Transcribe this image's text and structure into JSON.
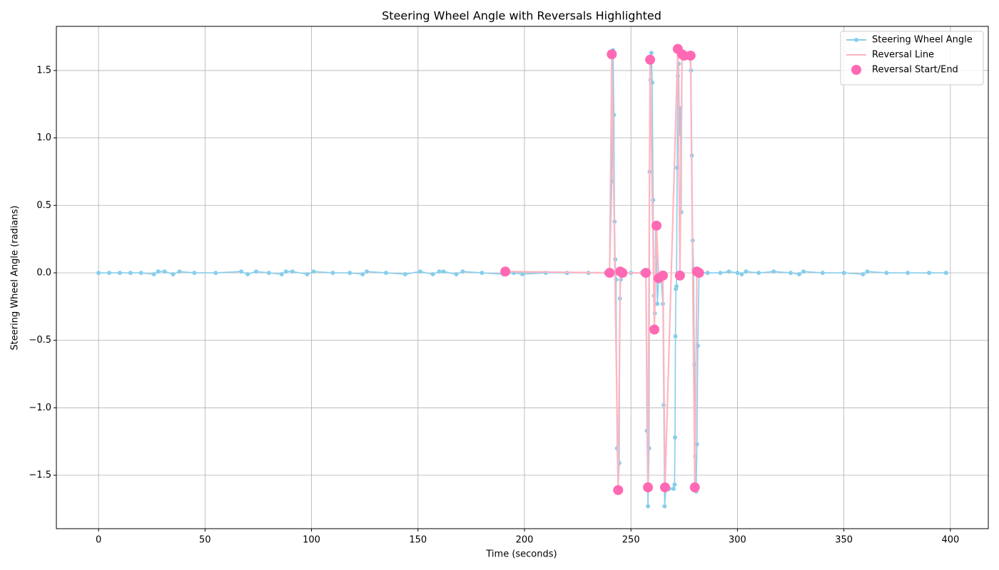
{
  "chart_data": {
    "type": "line",
    "title": "Steering Wheel Angle with Reversals Highlighted",
    "x_label": "Time (seconds)",
    "y_label": "Steering Wheel Angle (radians)",
    "xlim": [
      -19.8,
      417.8
    ],
    "ylim": [
      -1.896,
      1.827
    ],
    "xticks": [
      0,
      50,
      100,
      150,
      200,
      250,
      300,
      350,
      400
    ],
    "yticks": [
      {
        "value": -1.5,
        "label": "−1.5"
      },
      {
        "value": -1.0,
        "label": "−1.0"
      },
      {
        "value": -0.5,
        "label": "−0.5"
      },
      {
        "value": 0.0,
        "label": "0.0"
      },
      {
        "value": 0.5,
        "label": "0.5"
      },
      {
        "value": 1.0,
        "label": "1.0"
      },
      {
        "value": 1.5,
        "label": "1.5"
      }
    ],
    "grid": true,
    "legend": "upper right",
    "series": [
      {
        "name": "Steering Wheel Angle",
        "color": "#87ceeb",
        "mode": "line+markers",
        "x": [
          0,
          5,
          10,
          15,
          20,
          26,
          28,
          31,
          35,
          38,
          45,
          55,
          67,
          70,
          74,
          80,
          86,
          88,
          91,
          98,
          101,
          110,
          118,
          124,
          126,
          135,
          144,
          151,
          157,
          160,
          162,
          168,
          171,
          180,
          190,
          195,
          199,
          210,
          220,
          230,
          238,
          240,
          241,
          241.3,
          241.6,
          242,
          242.3,
          242.6,
          243,
          243.5,
          244,
          244.5,
          244.8,
          245.2,
          246,
          250,
          255,
          257,
          257.5,
          258,
          258.5,
          258.8,
          259.2,
          259.6,
          260,
          260.4,
          260.8,
          261.2,
          261.6,
          262,
          262.4,
          263,
          264,
          265,
          265.4,
          265.8,
          266.4,
          268,
          270,
          270.5,
          270.7,
          270.9,
          271.1,
          271.4,
          271.7,
          272,
          272.4,
          272.8,
          273.2,
          273.6,
          274,
          276,
          277.5,
          278.2,
          278.6,
          279,
          279.4,
          279.8,
          280.2,
          280.6,
          281,
          281.4,
          282,
          286,
          292,
          296,
          300,
          302,
          304,
          310,
          317,
          325,
          329,
          331,
          340,
          350,
          359,
          361,
          370,
          380,
          390,
          398
        ],
        "values": [
          0,
          0,
          0,
          0,
          0,
          -0.01,
          0.01,
          0.01,
          -0.01,
          0.01,
          0,
          0,
          0.01,
          -0.01,
          0.01,
          0,
          -0.01,
          0.01,
          0.01,
          -0.01,
          0.01,
          0,
          0,
          -0.01,
          0.01,
          0,
          -0.01,
          0.01,
          -0.01,
          0.01,
          0.01,
          -0.01,
          0.01,
          0,
          -0.01,
          0,
          -0.01,
          0,
          0,
          0,
          0,
          0,
          0.68,
          1.22,
          1.65,
          1.17,
          0.38,
          0.1,
          -0.05,
          -1.3,
          -1.6,
          -1.41,
          -0.19,
          -0.05,
          0,
          0,
          0,
          0,
          -1.17,
          -1.73,
          -1.3,
          0.75,
          1.43,
          1.63,
          1.41,
          0.54,
          -0.17,
          -0.3,
          0.35,
          0.12,
          -0.23,
          -0.05,
          -0.02,
          -0.23,
          -0.98,
          -1.73,
          -1.6,
          -1.6,
          -1.6,
          -1.57,
          -1.22,
          -0.47,
          -0.12,
          -0.1,
          0.78,
          1.46,
          1.55,
          1.03,
          1.22,
          0.45,
          1.6,
          1.6,
          1.6,
          1.5,
          0.87,
          0.24,
          0.03,
          -0.68,
          -1.36,
          -1.62,
          -1.27,
          -0.54,
          0,
          0,
          0,
          0.01,
          0,
          -0.01,
          0.01,
          0,
          0.01,
          0,
          -0.01,
          0.01,
          0,
          0,
          -0.01,
          0.01,
          0,
          0,
          0,
          0
        ]
      },
      {
        "name": "Reversal Line",
        "color": "#ffb6c1",
        "mode": "line",
        "x": [
          191,
          240,
          241,
          244,
          245,
          246,
          257,
          258,
          259,
          261,
          262,
          263,
          265,
          266,
          272,
          273,
          274,
          275,
          278,
          280,
          281,
          282
        ],
        "values": [
          0.01,
          0,
          1.62,
          -1.61,
          0.01,
          0,
          0,
          -1.59,
          1.58,
          -0.42,
          0.35,
          -0.04,
          -0.02,
          -1.59,
          1.66,
          -0.02,
          1.62,
          1.61,
          1.61,
          -1.59,
          0.01,
          0
        ]
      },
      {
        "name": "Reversal Start/End",
        "color": "#ff69b4",
        "mode": "markers",
        "x": [
          191,
          240,
          241,
          244,
          245,
          246,
          257,
          258,
          259,
          261,
          262,
          263,
          265,
          266,
          272,
          273,
          274,
          275,
          278,
          280,
          281,
          282
        ],
        "values": [
          0.01,
          0,
          1.62,
          -1.61,
          0.01,
          0,
          0,
          -1.59,
          1.58,
          -0.42,
          0.35,
          -0.04,
          -0.02,
          -1.59,
          1.66,
          -0.02,
          1.62,
          1.61,
          1.61,
          -1.59,
          0.01,
          0
        ]
      }
    ]
  }
}
